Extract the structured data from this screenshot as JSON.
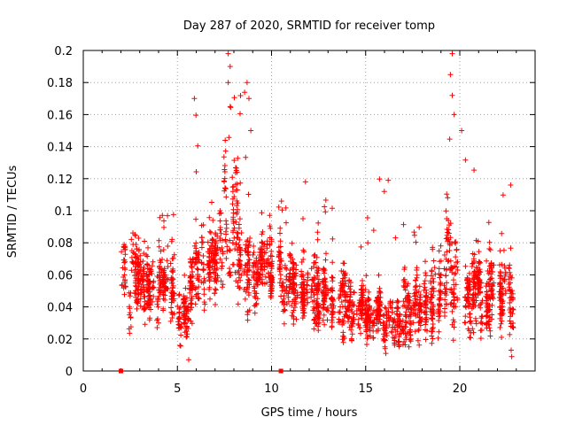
{
  "chart_data": {
    "type": "scatter",
    "title": "Day 287 of 2020, SRMTID for receiver tomp",
    "xlabel": "GPS time / hours",
    "ylabel": "SRMTID / TECUs",
    "xlim": [
      0,
      24
    ],
    "ylim": [
      0,
      0.2
    ],
    "xticks": [
      0,
      5,
      10,
      15,
      20
    ],
    "yticks": [
      0,
      0.02,
      0.04,
      0.06,
      0.08,
      0.1,
      0.12,
      0.14,
      0.16,
      0.18,
      0.2
    ],
    "ytick_labels": [
      "0",
      "0.02",
      "0.04",
      "0.06",
      "0.08",
      "0.1",
      "0.12",
      "0.14",
      "0.16",
      "0.18",
      "0.2"
    ],
    "grid": true,
    "marker": "+",
    "color": "#ff0000",
    "zero_markers": [
      {
        "x": 2.0,
        "y": 0
      },
      {
        "x": 10.5,
        "y": 0
      }
    ],
    "series": [
      {
        "name": "SRMTID",
        "approx_points": 2600,
        "profile": [
          {
            "x_start": 2.0,
            "x_end": 3.0,
            "median": 0.055,
            "spread": 0.022,
            "max": 0.095
          },
          {
            "x_start": 3.0,
            "x_end": 4.0,
            "median": 0.052,
            "spread": 0.018,
            "max": 0.09
          },
          {
            "x_start": 4.0,
            "x_end": 5.0,
            "median": 0.056,
            "spread": 0.02,
            "max": 0.1
          },
          {
            "x_start": 5.0,
            "x_end": 5.6,
            "median": 0.035,
            "spread": 0.015,
            "max": 0.07
          },
          {
            "x_start": 5.6,
            "x_end": 6.5,
            "median": 0.06,
            "spread": 0.025,
            "max": 0.17
          },
          {
            "x_start": 6.5,
            "x_end": 7.5,
            "median": 0.068,
            "spread": 0.022,
            "max": 0.12
          },
          {
            "x_start": 7.5,
            "x_end": 8.2,
            "median": 0.085,
            "spread": 0.035,
            "max": 0.2
          },
          {
            "x_start": 8.2,
            "x_end": 9.0,
            "median": 0.065,
            "spread": 0.03,
            "max": 0.18
          },
          {
            "x_start": 9.0,
            "x_end": 10.5,
            "median": 0.065,
            "spread": 0.018,
            "max": 0.105
          },
          {
            "x_start": 10.5,
            "x_end": 12.0,
            "median": 0.05,
            "spread": 0.02,
            "max": 0.118
          },
          {
            "x_start": 12.0,
            "x_end": 14.0,
            "median": 0.048,
            "spread": 0.02,
            "max": 0.108
          },
          {
            "x_start": 14.0,
            "x_end": 15.0,
            "median": 0.04,
            "spread": 0.017,
            "max": 0.08
          },
          {
            "x_start": 15.0,
            "x_end": 17.0,
            "median": 0.033,
            "spread": 0.015,
            "max": 0.12
          },
          {
            "x_start": 17.0,
            "x_end": 18.5,
            "median": 0.04,
            "spread": 0.018,
            "max": 0.09
          },
          {
            "x_start": 18.5,
            "x_end": 19.3,
            "median": 0.045,
            "spread": 0.02,
            "max": 0.1
          },
          {
            "x_start": 19.3,
            "x_end": 19.9,
            "median": 0.07,
            "spread": 0.035,
            "max": 0.2
          },
          {
            "x_start": 19.9,
            "x_end": 21.5,
            "median": 0.05,
            "spread": 0.022,
            "max": 0.15
          },
          {
            "x_start": 21.5,
            "x_end": 22.9,
            "median": 0.045,
            "spread": 0.025,
            "max": 0.116
          }
        ],
        "notable_points": [
          {
            "x": 5.9,
            "y": 0.17
          },
          {
            "x": 7.7,
            "y": 0.198
          },
          {
            "x": 7.8,
            "y": 0.19
          },
          {
            "x": 7.7,
            "y": 0.18
          },
          {
            "x": 7.8,
            "y": 0.165
          },
          {
            "x": 8.7,
            "y": 0.18
          },
          {
            "x": 8.8,
            "y": 0.17
          },
          {
            "x": 8.9,
            "y": 0.15
          },
          {
            "x": 16.2,
            "y": 0.119
          },
          {
            "x": 19.6,
            "y": 0.198
          },
          {
            "x": 19.5,
            "y": 0.185
          },
          {
            "x": 19.6,
            "y": 0.172
          },
          {
            "x": 19.7,
            "y": 0.16
          },
          {
            "x": 20.1,
            "y": 0.15
          },
          {
            "x": 22.7,
            "y": 0.116
          },
          {
            "x": 11.8,
            "y": 0.118
          },
          {
            "x": 5.6,
            "y": 0.007
          }
        ]
      }
    ]
  }
}
